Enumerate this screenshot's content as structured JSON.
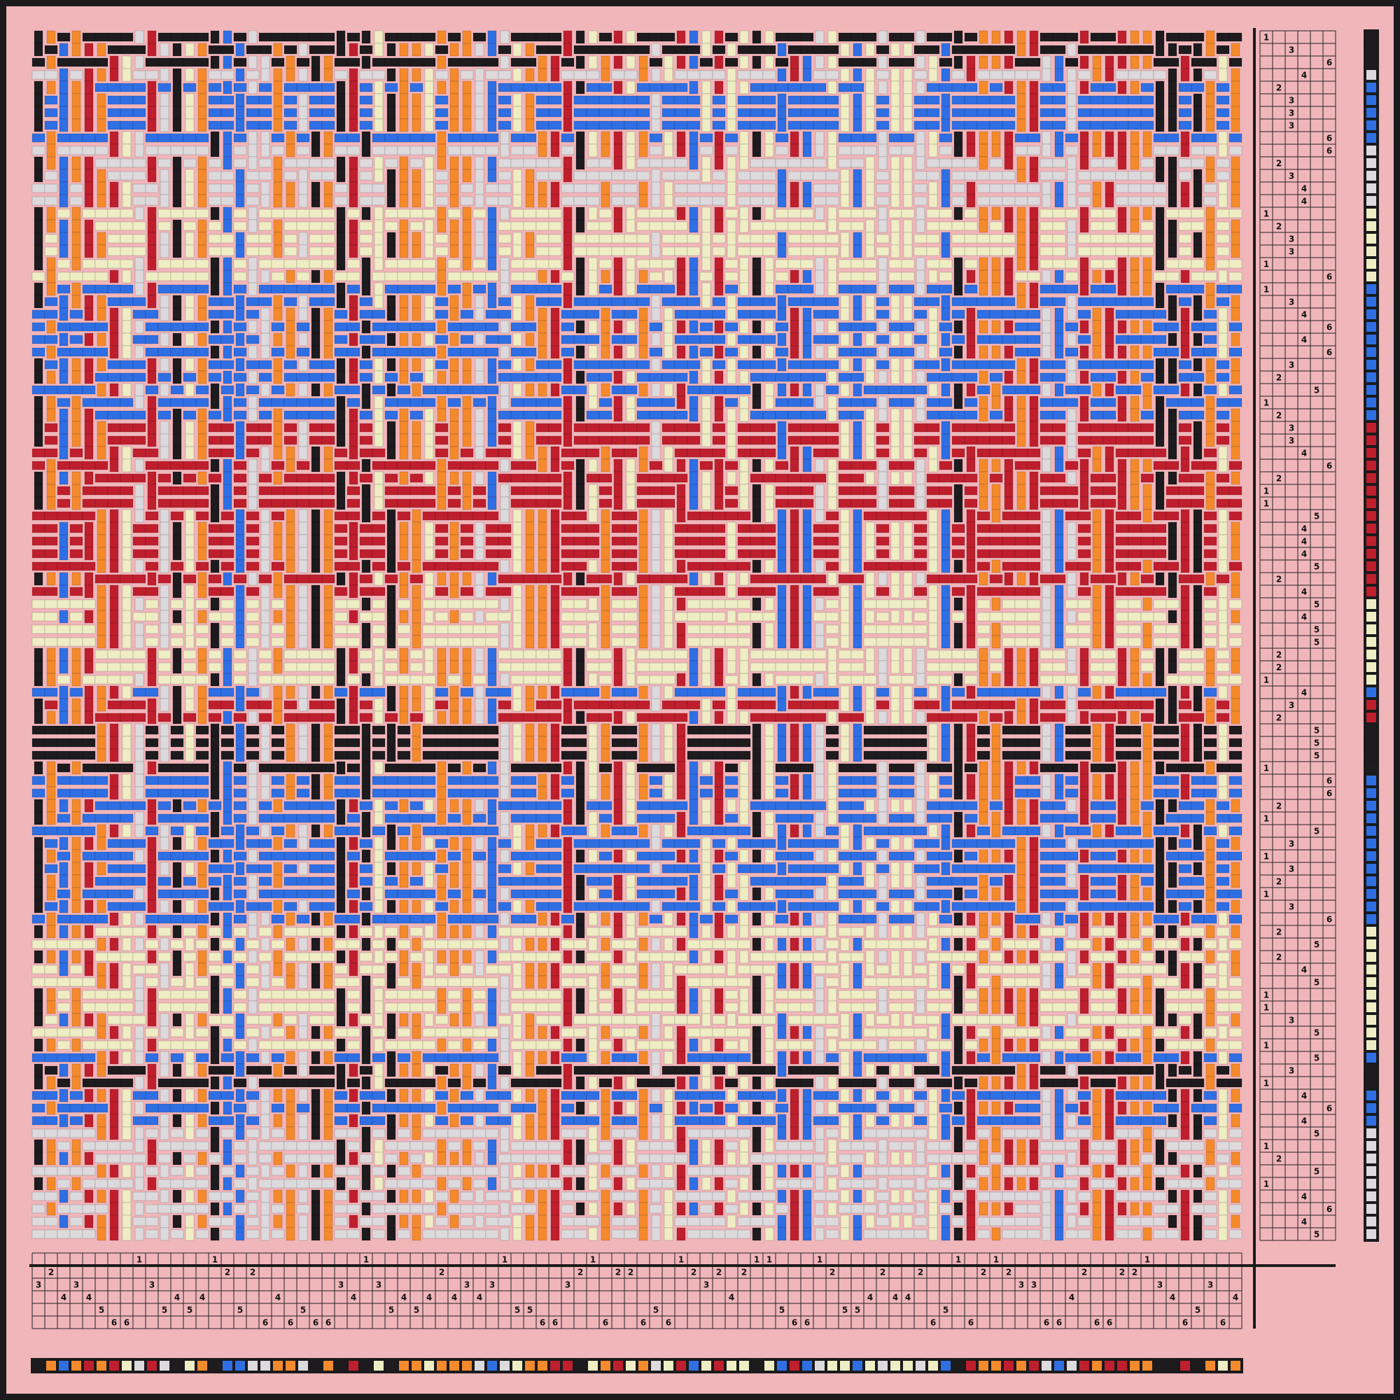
{
  "threading": [
    3,
    2,
    4,
    3,
    4,
    5,
    6,
    6,
    1,
    3,
    5,
    4,
    5,
    4,
    1,
    2,
    5,
    2,
    6,
    4,
    6,
    5,
    6,
    6,
    3,
    4,
    1,
    3,
    5,
    4,
    5,
    4,
    2,
    4,
    3,
    4,
    3,
    1,
    5,
    5,
    6,
    6,
    3,
    2,
    1,
    6,
    2,
    2,
    6,
    5,
    6,
    1,
    2,
    3,
    2,
    4,
    2,
    1,
    1,
    5,
    6,
    6,
    1,
    2,
    5,
    5,
    4,
    2,
    4,
    4,
    2,
    6,
    5,
    1,
    6,
    2,
    1,
    2,
    3,
    3,
    6,
    6,
    4,
    2,
    6,
    6,
    2,
    2,
    1,
    3,
    4,
    6,
    5,
    3,
    6,
    4
  ],
  "treadling": [
    1,
    3,
    6,
    4,
    2,
    3,
    3,
    3,
    6,
    6,
    2,
    3,
    4,
    4,
    1,
    2,
    3,
    3,
    1,
    6,
    1,
    3,
    4,
    6,
    4,
    6,
    3,
    2,
    5,
    1,
    2,
    3,
    3,
    4,
    6,
    2,
    1,
    1,
    5,
    4,
    4,
    4,
    5,
    2,
    4,
    5,
    4,
    5,
    5,
    2,
    2,
    1,
    4,
    3,
    2,
    5,
    5,
    5,
    1,
    6,
    6,
    2,
    1,
    5,
    3,
    1,
    3,
    2,
    1,
    3,
    6,
    2,
    5,
    2,
    4,
    5,
    1,
    1,
    3,
    5,
    1,
    5,
    3,
    1,
    4,
    6,
    4,
    5,
    1,
    2,
    5,
    1,
    4,
    6,
    4,
    5
  ],
  "warp_colors": [
    "#1d1b1e",
    "#f48a2c",
    "#2f6fe3",
    "#f48a2c",
    "#bf1f2d",
    "#f48a2c",
    "#bf1f2d",
    "#efedc4",
    "#dcdadc",
    "#bf1f2d",
    "#dcdadc",
    "#1d1b1e",
    "#efedc4",
    "#f48a2c",
    "#1d1b1e",
    "#2f6fe3",
    "#2f6fe3",
    "#dcdadc",
    "#dcdadc",
    "#f48a2c",
    "#f48a2c",
    "#dcdadc",
    "#1d1b1e",
    "#f48a2c",
    "#1d1b1e",
    "#bf1f2d",
    "#1d1b1e",
    "#efedc4",
    "#1d1b1e",
    "#f48a2c",
    "#f48a2c",
    "#efedc4",
    "#f48a2c",
    "#f48a2c",
    "#f48a2c",
    "#dcdadc",
    "#2f6fe3",
    "#dcdadc",
    "#efedc4",
    "#f48a2c",
    "#f48a2c",
    "#bf1f2d",
    "#bf1f2d",
    "#1d1b1e",
    "#efedc4",
    "#f48a2c",
    "#bf1f2d",
    "#efedc4",
    "#f48a2c",
    "#dcdadc",
    "#efedc4",
    "#bf1f2d",
    "#2f6fe3",
    "#efedc4",
    "#bf1f2d",
    "#efedc4",
    "#efedc4",
    "#1d1b1e",
    "#efedc4",
    "#2f6fe3",
    "#bf1f2d",
    "#2f6fe3",
    "#dcdadc",
    "#efedc4",
    "#efedc4",
    "#2f6fe3",
    "#efedc4",
    "#dcdadc",
    "#efedc4",
    "#efedc4",
    "#dcdadc",
    "#efedc4",
    "#2f6fe3",
    "#1d1b1e",
    "#bf1f2d",
    "#f48a2c",
    "#f48a2c",
    "#bf1f2d",
    "#f48a2c",
    "#bf1f2d",
    "#dcdadc",
    "#2f6fe3",
    "#dcdadc",
    "#bf1f2d",
    "#f48a2c",
    "#bf1f2d",
    "#bf1f2d",
    "#f48a2c",
    "#f48a2c",
    "#1d1b1e",
    "#1d1b1e",
    "#bf1f2d",
    "#1d1b1e",
    "#f48a2c",
    "#efedc4",
    "#f48a2c"
  ],
  "weft_colors": [
    "#1d1b1e",
    "#1d1b1e",
    "#1d1b1e",
    "#dcdadc",
    "#2f6fe3",
    "#2f6fe3",
    "#2f6fe3",
    "#2f6fe3",
    "#2f6fe3",
    "#dcdadc",
    "#dcdadc",
    "#dcdadc",
    "#dcdadc",
    "#dcdadc",
    "#efedc4",
    "#efedc4",
    "#efedc4",
    "#efedc4",
    "#efedc4",
    "#efedc4",
    "#2f6fe3",
    "#2f6fe3",
    "#2f6fe3",
    "#2f6fe3",
    "#2f6fe3",
    "#2f6fe3",
    "#2f6fe3",
    "#2f6fe3",
    "#2f6fe3",
    "#2f6fe3",
    "#2f6fe3",
    "#bf1f2d",
    "#bf1f2d",
    "#bf1f2d",
    "#bf1f2d",
    "#bf1f2d",
    "#bf1f2d",
    "#bf1f2d",
    "#bf1f2d",
    "#bf1f2d",
    "#bf1f2d",
    "#bf1f2d",
    "#bf1f2d",
    "#bf1f2d",
    "#bf1f2d",
    "#efedc4",
    "#efedc4",
    "#efedc4",
    "#efedc4",
    "#efedc4",
    "#efedc4",
    "#efedc4",
    "#2f6fe3",
    "#bf1f2d",
    "#bf1f2d",
    "#1d1b1e",
    "#1d1b1e",
    "#1d1b1e",
    "#1d1b1e",
    "#2f6fe3",
    "#2f6fe3",
    "#2f6fe3",
    "#2f6fe3",
    "#2f6fe3",
    "#2f6fe3",
    "#2f6fe3",
    "#2f6fe3",
    "#2f6fe3",
    "#2f6fe3",
    "#2f6fe3",
    "#2f6fe3",
    "#efedc4",
    "#efedc4",
    "#efedc4",
    "#efedc4",
    "#efedc4",
    "#efedc4",
    "#efedc4",
    "#efedc4",
    "#efedc4",
    "#efedc4",
    "#2f6fe3",
    "#1d1b1e",
    "#1d1b1e",
    "#2f6fe3",
    "#2f6fe3",
    "#2f6fe3",
    "#dcdadc",
    "#dcdadc",
    "#dcdadc",
    "#dcdadc",
    "#dcdadc",
    "#dcdadc",
    "#dcdadc",
    "#dcdadc",
    "#dcdadc"
  ]
}
